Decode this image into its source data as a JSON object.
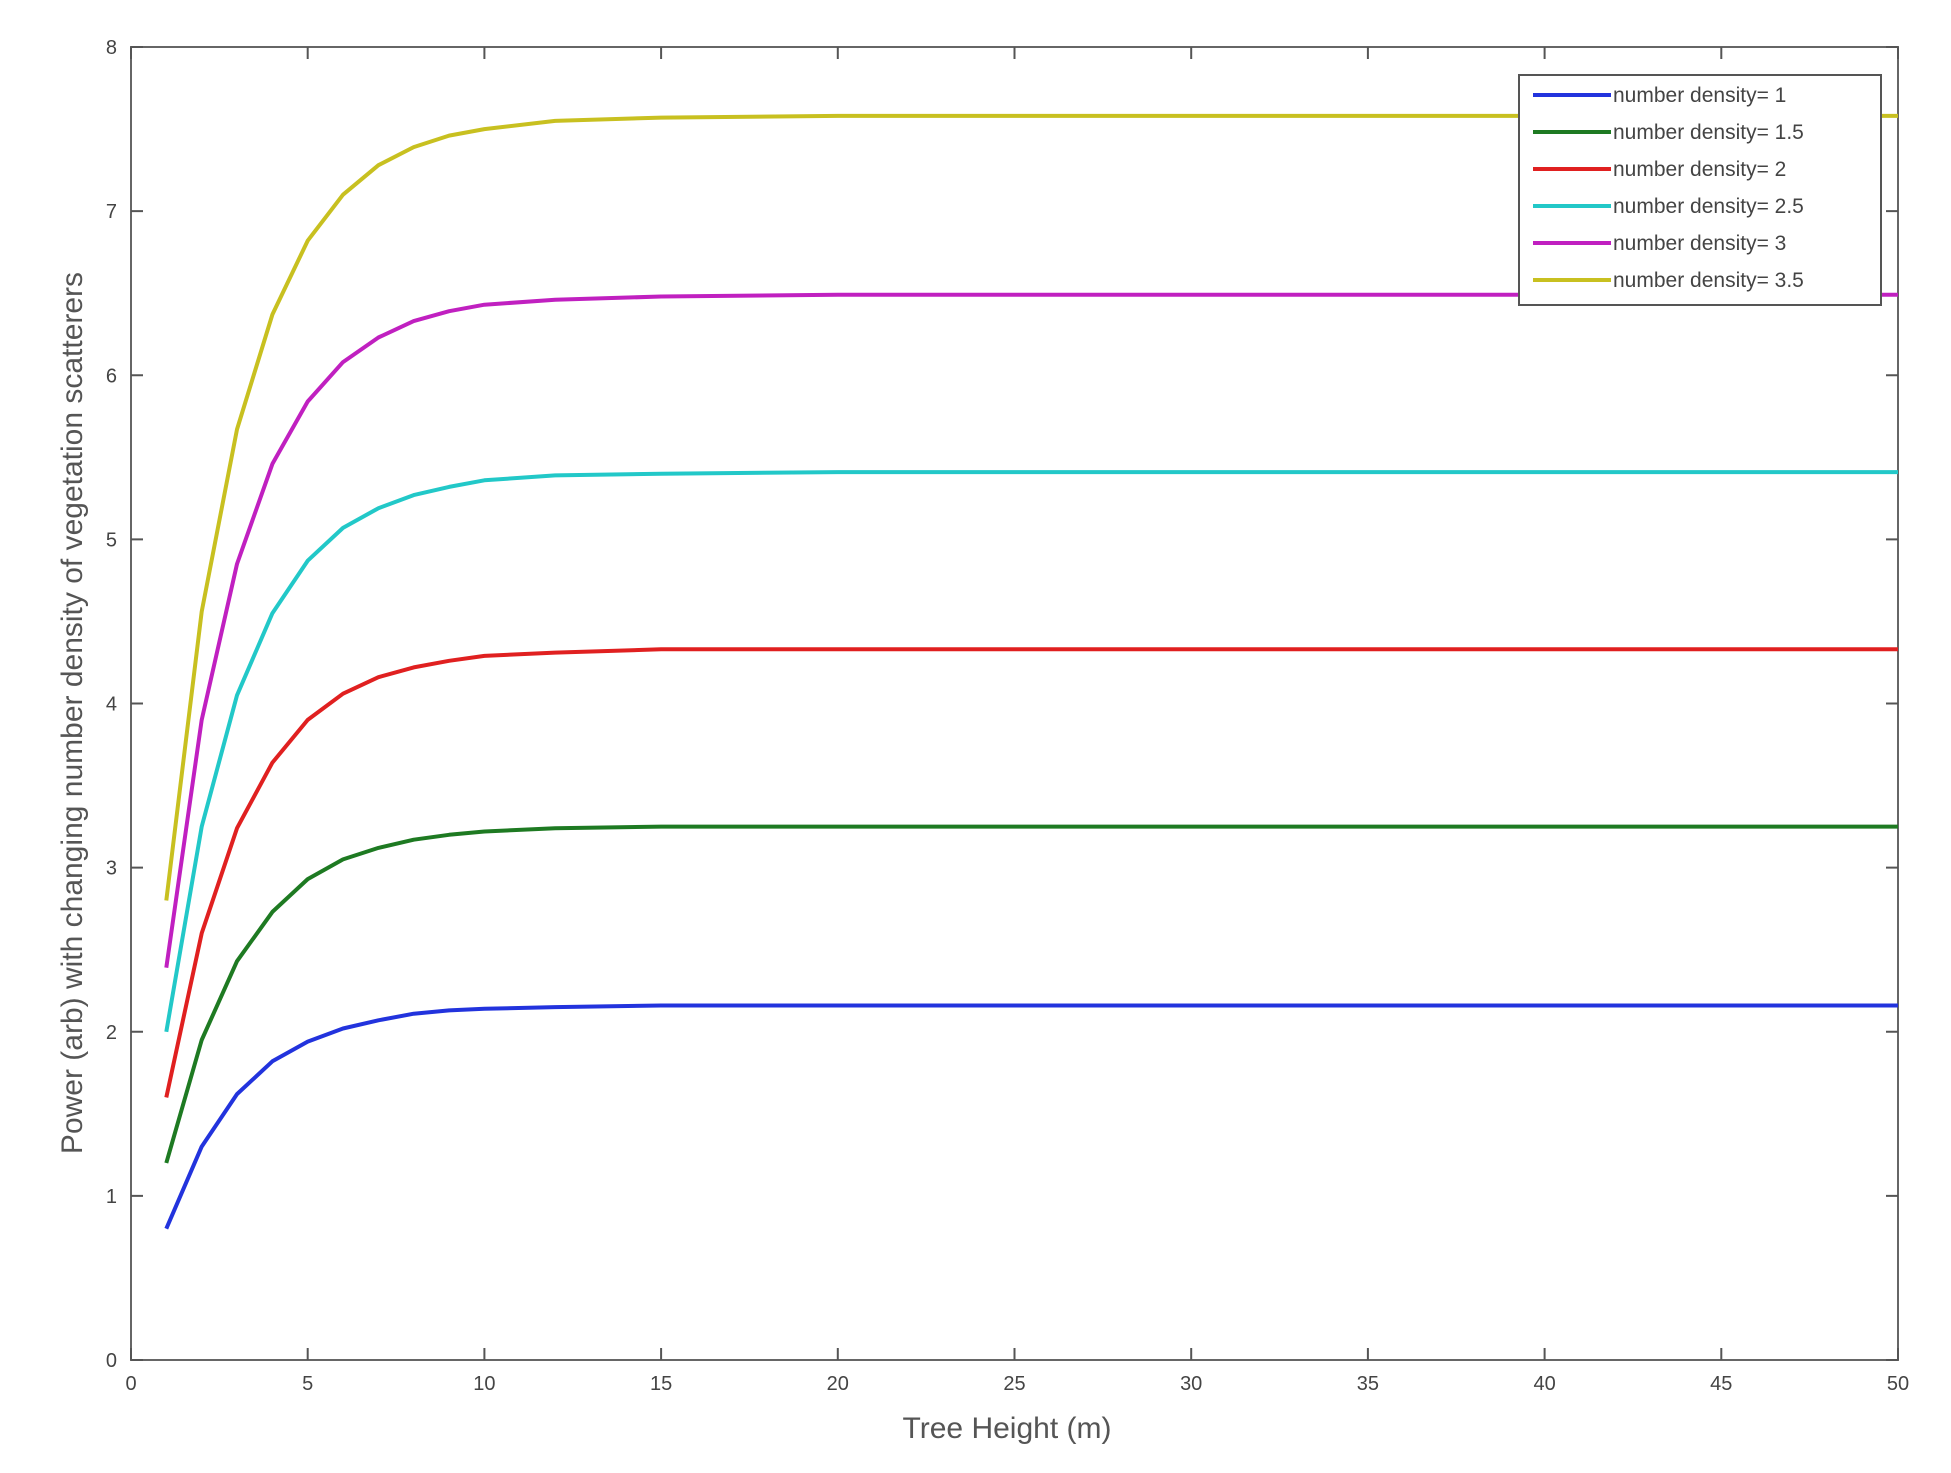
{
  "chart_data": {
    "type": "line",
    "title": "",
    "xlabel": "Tree Height (m)",
    "ylabel": "Power (arb) with changing number density of vegetation scatterers",
    "xlim": [
      0,
      50
    ],
    "ylim": [
      0,
      8
    ],
    "xticks": [
      0,
      5,
      10,
      15,
      20,
      25,
      30,
      35,
      40,
      45,
      50
    ],
    "yticks": [
      0,
      1,
      2,
      3,
      4,
      5,
      6,
      7,
      8
    ],
    "grid": false,
    "legend_position": "top-right",
    "x": [
      1,
      2,
      3,
      4,
      5,
      6,
      7,
      8,
      9,
      10,
      12,
      15,
      20,
      30,
      40,
      50
    ],
    "series": [
      {
        "name": "number density= 1",
        "color": "#2233dd",
        "values": [
          0.8,
          1.3,
          1.62,
          1.82,
          1.94,
          2.02,
          2.07,
          2.11,
          2.13,
          2.14,
          2.15,
          2.16,
          2.16,
          2.16,
          2.16,
          2.16
        ]
      },
      {
        "name": "number density= 1.5",
        "color": "#1e7a22",
        "values": [
          1.2,
          1.95,
          2.43,
          2.73,
          2.93,
          3.05,
          3.12,
          3.17,
          3.2,
          3.22,
          3.24,
          3.25,
          3.25,
          3.25,
          3.25,
          3.25
        ]
      },
      {
        "name": "number density= 2",
        "color": "#e02020",
        "values": [
          1.6,
          2.6,
          3.24,
          3.64,
          3.9,
          4.06,
          4.16,
          4.22,
          4.26,
          4.29,
          4.31,
          4.33,
          4.33,
          4.33,
          4.33,
          4.33
        ]
      },
      {
        "name": "number density= 2.5",
        "color": "#22c8c8",
        "values": [
          2.0,
          3.25,
          4.05,
          4.55,
          4.87,
          5.07,
          5.19,
          5.27,
          5.32,
          5.36,
          5.39,
          5.4,
          5.41,
          5.41,
          5.41,
          5.41
        ]
      },
      {
        "name": "number density= 3",
        "color": "#c020c0",
        "values": [
          2.39,
          3.9,
          4.85,
          5.46,
          5.84,
          6.08,
          6.23,
          6.33,
          6.39,
          6.43,
          6.46,
          6.48,
          6.49,
          6.49,
          6.49,
          6.49
        ]
      },
      {
        "name": "number density= 3.5",
        "color": "#c8c020",
        "values": [
          2.8,
          4.56,
          5.67,
          6.37,
          6.82,
          7.1,
          7.28,
          7.39,
          7.46,
          7.5,
          7.55,
          7.57,
          7.58,
          7.58,
          7.58,
          7.58
        ]
      }
    ]
  }
}
